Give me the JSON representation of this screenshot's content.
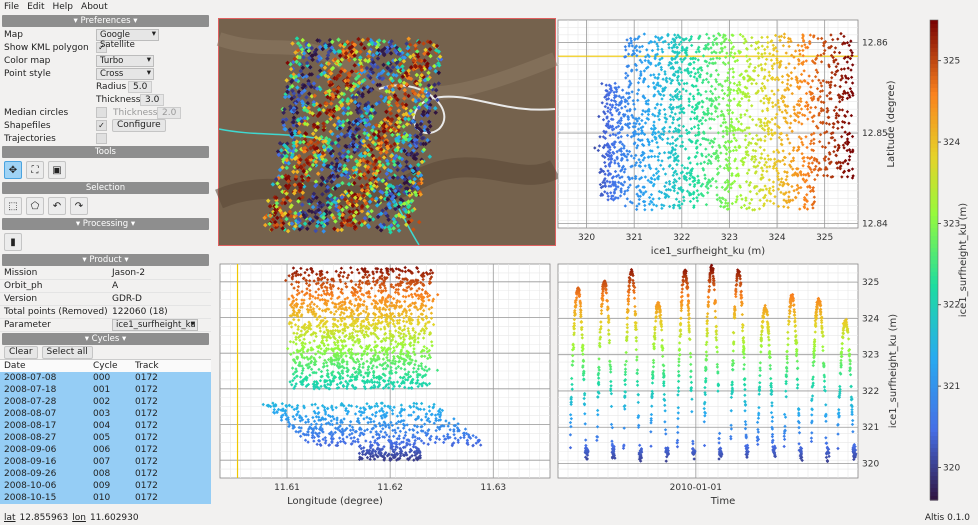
{
  "menu": [
    "File",
    "Edit",
    "Help",
    "About"
  ],
  "prefs": {
    "title": "▾ Preferences ▾",
    "map_label": "Map",
    "map_value": "Google Satellite",
    "kml_label": "Show KML polygon",
    "cmap_label": "Color map",
    "cmap_value": "Turbo",
    "pstyle_label": "Point style",
    "pstyle_value": "Cross",
    "radius_label": "Radius",
    "radius_value": "5.0",
    "thick_label": "Thickness",
    "thick_value": "3.0",
    "median_label": "Median circles",
    "median_thick_label": "Thickness",
    "median_thick_value": "2.0",
    "shape_label": "Shapefiles",
    "configure": "Configure",
    "traj_label": "Trajectories"
  },
  "tools_title": "Tools",
  "selection_title": "Selection",
  "processing_title": "▾ Processing ▾",
  "product": {
    "title": "▾ Product ▾",
    "rows": [
      {
        "k": "Mission",
        "v": "Jason-2"
      },
      {
        "k": "Orbit_ph",
        "v": "A"
      },
      {
        "k": "Version",
        "v": "GDR-D"
      },
      {
        "k": "Total points (Removed)",
        "v": "122060 (18)"
      }
    ],
    "param_label": "Parameter",
    "param_value": "ice1_surfheight_ku"
  },
  "cycles": {
    "title": "▾ Cycles ▾",
    "clear": "Clear",
    "select_all": "Select all",
    "headers": [
      "Date",
      "Cycle",
      "Track"
    ],
    "rows": [
      [
        "2008-07-08",
        "000",
        "0172"
      ],
      [
        "2008-07-18",
        "001",
        "0172"
      ],
      [
        "2008-07-28",
        "002",
        "0172"
      ],
      [
        "2008-08-07",
        "003",
        "0172"
      ],
      [
        "2008-08-17",
        "004",
        "0172"
      ],
      [
        "2008-08-27",
        "005",
        "0172"
      ],
      [
        "2008-09-06",
        "006",
        "0172"
      ],
      [
        "2008-09-16",
        "007",
        "0172"
      ],
      [
        "2008-09-26",
        "008",
        "0172"
      ],
      [
        "2008-10-06",
        "009",
        "0172"
      ],
      [
        "2008-10-15",
        "010",
        "0172"
      ]
    ]
  },
  "status": {
    "lat_label": "lat",
    "lat": "12.855963",
    "lon_label": "lon",
    "lon": "11.602930",
    "version": "Altis 0.1.0"
  },
  "colorbar": {
    "label": "ice1_surfheight_ku (m)",
    "ticks": [
      "325",
      "324",
      "323",
      "322",
      "321",
      "320"
    ]
  },
  "chart_data": [
    {
      "type": "scatter",
      "id": "height-vs-lat",
      "x": {
        "label": "ice1_surfheight_ku (m)",
        "ticks": [
          "320",
          "321",
          "322",
          "323",
          "324",
          "325"
        ],
        "lim": [
          319.4,
          325.7
        ]
      },
      "y": {
        "label": "Latitude (degree)",
        "ticks": [
          "12.86",
          "12.85",
          "12.84"
        ],
        "lim": [
          12.8395,
          12.8625
        ]
      }
    },
    {
      "type": "scatter",
      "id": "lon-vs-height",
      "x": {
        "label": "Longitude (degree)",
        "ticks": [
          "11.61",
          "11.62",
          "11.63"
        ],
        "lim": [
          11.6035,
          11.6355
        ]
      },
      "y": {
        "label": "",
        "ticks": [],
        "lim": [
          319.5,
          325.5
        ]
      }
    },
    {
      "type": "scatter",
      "id": "time-vs-height",
      "x": {
        "label": "Time",
        "ticks": [
          "2010-01-01"
        ],
        "lim": [
          2008.3,
          2012.0
        ]
      },
      "y": {
        "label": "ice1_surfheight_ku (m)",
        "ticks": [
          "325",
          "324",
          "323",
          "322",
          "321",
          "320"
        ],
        "lim": [
          319.6,
          325.5
        ]
      }
    }
  ]
}
